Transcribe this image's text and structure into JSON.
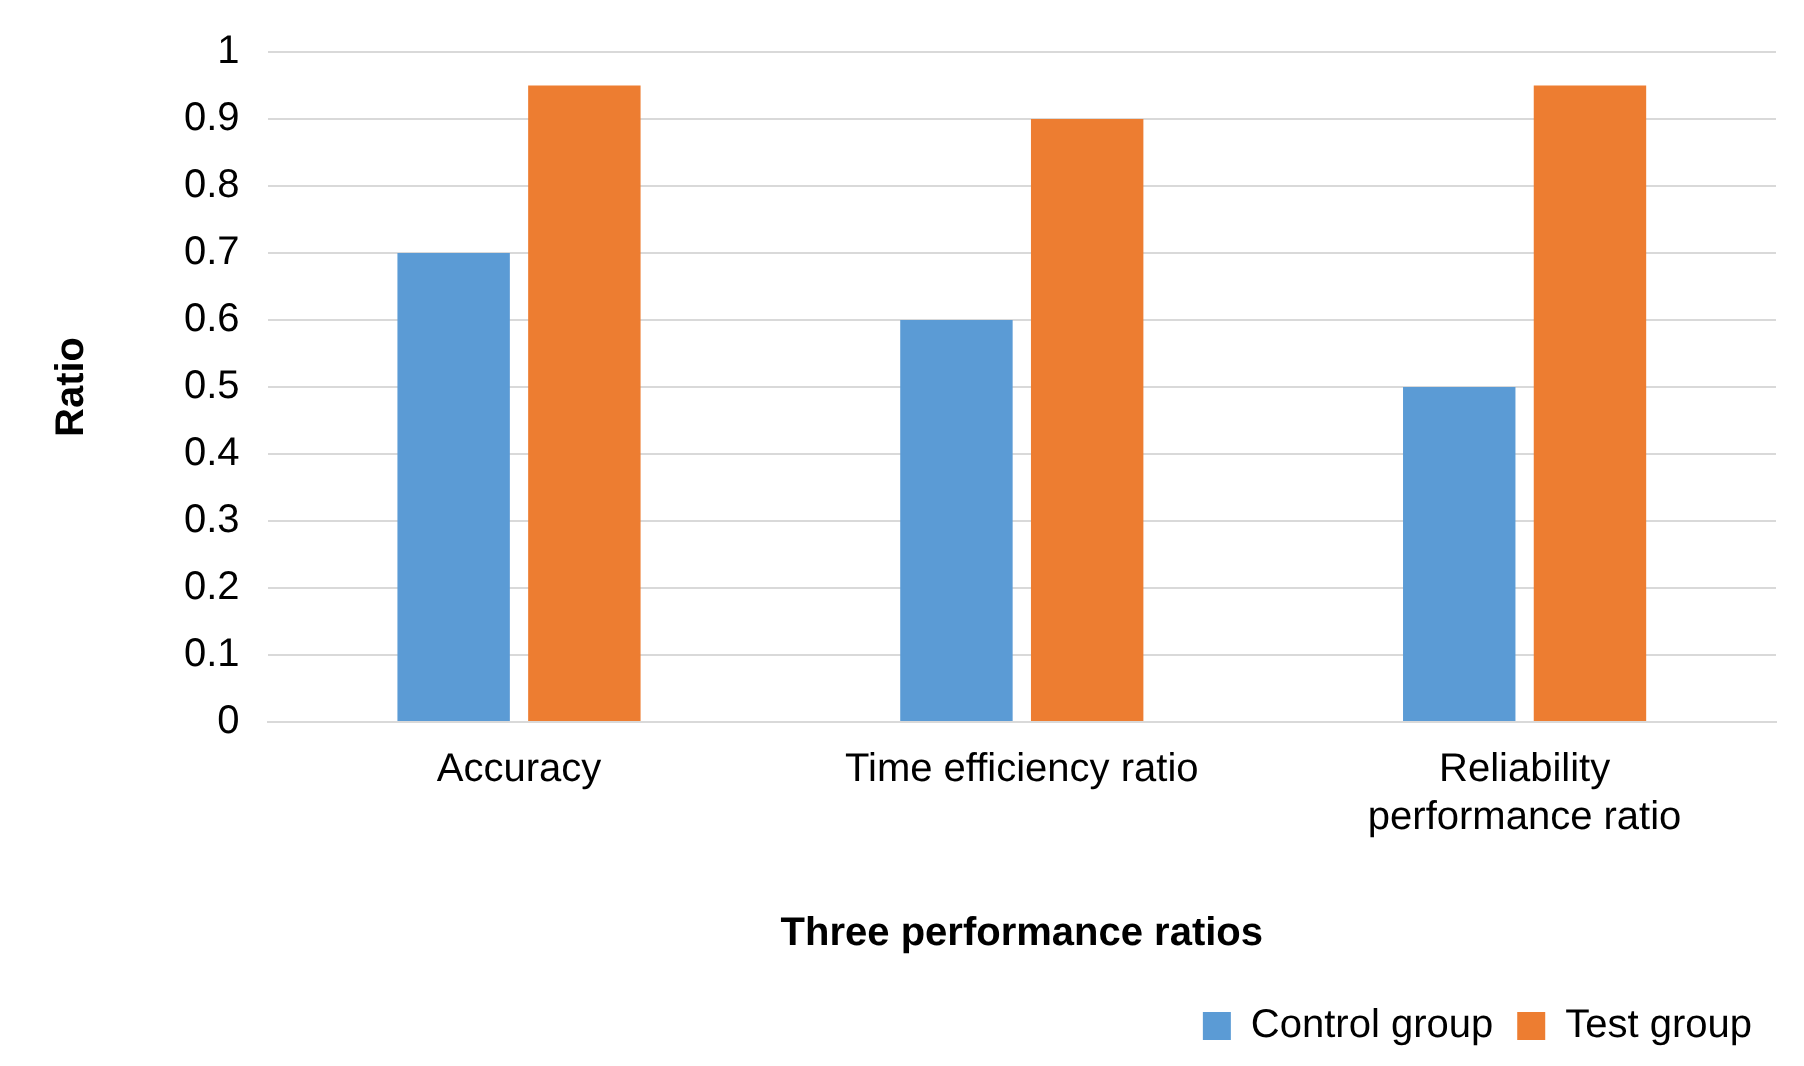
{
  "chart_data": {
    "type": "bar",
    "xlabel": "Three performance ratios",
    "ylabel": "Ratio",
    "categories": [
      "Accuracy",
      "Time efficiency ratio",
      "Reliability performance ratio"
    ],
    "series": [
      {
        "name": "Control group",
        "color": "#5b9bd5",
        "values": [
          0.7,
          0.6,
          0.5
        ]
      },
      {
        "name": "Test group",
        "color": "#ed7d31",
        "values": [
          0.95,
          0.9,
          0.95
        ]
      }
    ],
    "ylim": [
      0,
      1
    ],
    "yticks": [
      0,
      0.1,
      0.2,
      0.3,
      0.4,
      0.5,
      0.6,
      0.7,
      0.8,
      0.9,
      1
    ],
    "grid": "y",
    "legend": "bottom right"
  }
}
